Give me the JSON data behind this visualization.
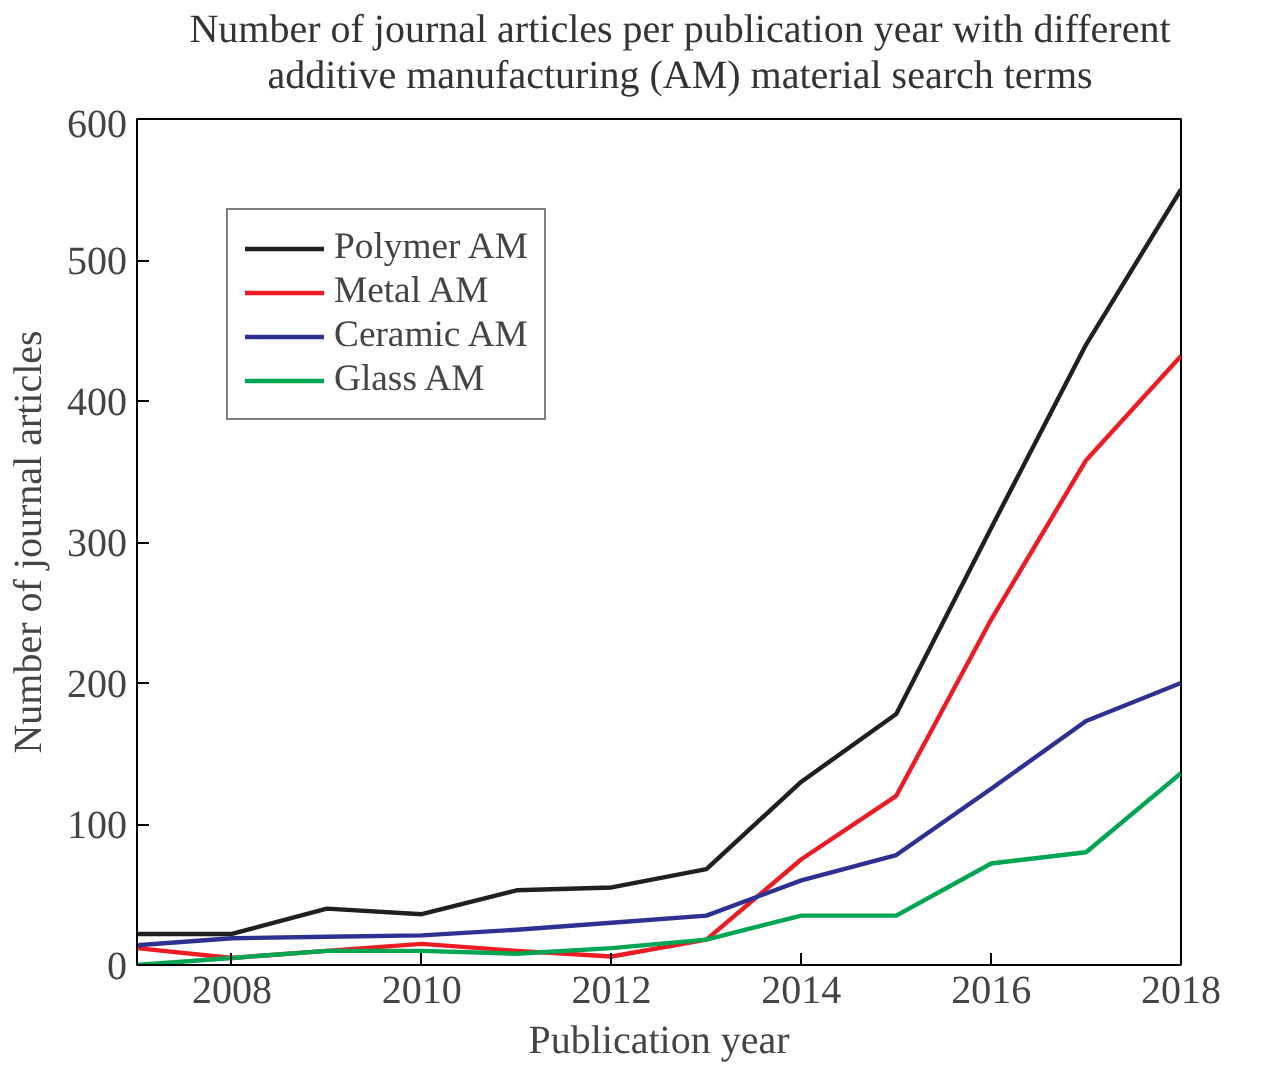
{
  "chart_data": {
    "type": "line",
    "title": "Number of journal articles per publication year with different additive manufacturing (AM) material search terms",
    "xlabel": "Publication year",
    "ylabel": "Number of journal articles",
    "x": [
      2007,
      2008,
      2009,
      2010,
      2011,
      2012,
      2013,
      2014,
      2015,
      2016,
      2017,
      2018
    ],
    "xlim": [
      2007,
      2018
    ],
    "xticks": [
      2008,
      2010,
      2012,
      2014,
      2016,
      2018
    ],
    "ylim": [
      0,
      600
    ],
    "yticks": [
      0,
      100,
      200,
      300,
      400,
      500,
      600
    ],
    "grid": false,
    "legend": "top left",
    "marker": "none",
    "line_style": "solid",
    "series": [
      {
        "name": "Polymer AM",
        "color": "#231f20",
        "values": [
          22,
          22,
          40,
          36,
          53,
          55,
          68,
          130,
          178,
          310,
          440,
          550
        ]
      },
      {
        "name": "Metal AM",
        "color": "#ed1c24",
        "values": [
          12,
          5,
          10,
          15,
          10,
          6,
          18,
          75,
          120,
          245,
          358,
          432
        ]
      },
      {
        "name": "Ceramic AM",
        "color": "#2e3192",
        "values": [
          14,
          19,
          20,
          21,
          25,
          30,
          35,
          60,
          78,
          125,
          173,
          200
        ]
      },
      {
        "name": "Glass AM",
        "color": "#00a651",
        "values": [
          0,
          5,
          10,
          10,
          8,
          12,
          18,
          35,
          35,
          72,
          80,
          136
        ]
      }
    ]
  }
}
